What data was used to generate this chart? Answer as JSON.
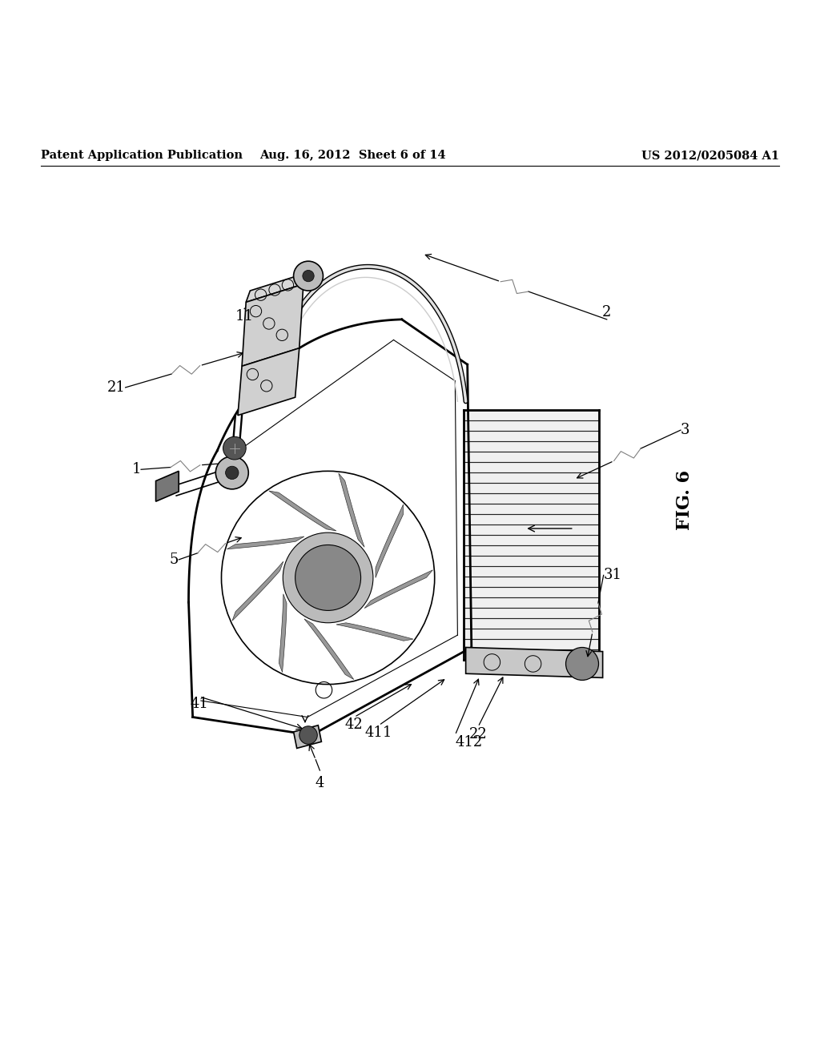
{
  "title": "FIG. 6",
  "header_left": "Patent Application Publication",
  "header_center": "Aug. 16, 2012  Sheet 6 of 14",
  "header_right": "US 2012/0205084 A1",
  "background_color": "#ffffff",
  "line_color": "#000000",
  "label_color": "#000000",
  "header_fontsize": 10.5,
  "annotation_fontsize": 13,
  "title_fontsize": 16
}
